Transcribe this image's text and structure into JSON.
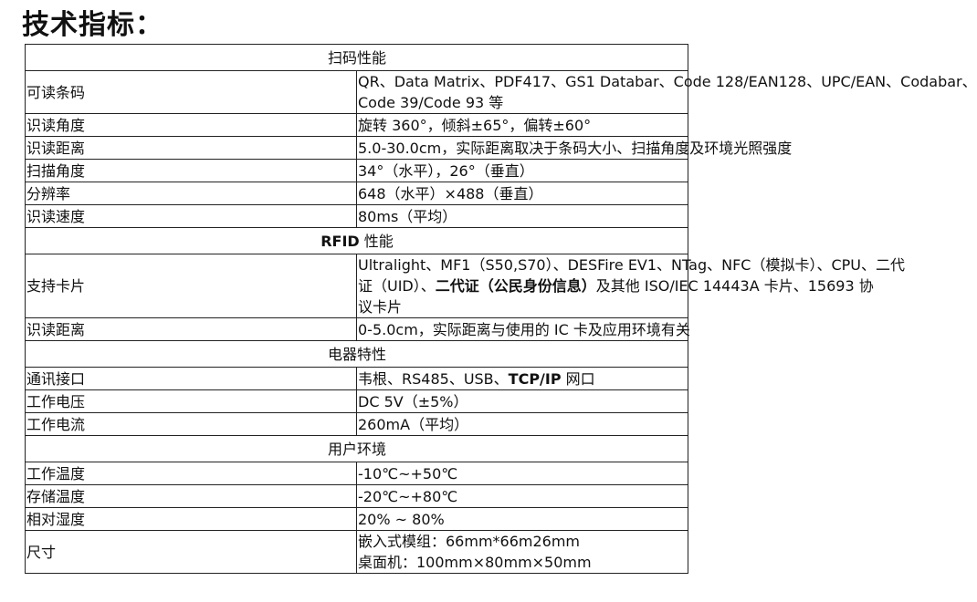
{
  "title": "技术指标：",
  "sections": [
    {
      "header": [
        {
          "t": "扫码性能",
          "b": false
        }
      ],
      "rows": [
        {
          "label": "可读条码",
          "lines": [
            [
              {
                "t": "QR",
                "b": false
              },
              {
                "t": "、Data Matrix、PDF417、GS1 Databar、Code 128/EAN128、UPC/EAN、Codabar、",
                "b": false
              }
            ],
            [
              {
                "t": "Code 39/Code 93 等",
                "b": false
              }
            ]
          ]
        },
        {
          "label": "识读角度",
          "lines": [
            [
              {
                "t": "旋转 360°，倾斜±65°，偏转±60°",
                "b": false
              }
            ]
          ]
        },
        {
          "label": "识读距离",
          "lines": [
            [
              {
                "t": "5.0-30.0cm，实际距离取决于条码大小、扫描角度及环境光照强度",
                "b": false
              }
            ]
          ]
        },
        {
          "label": "扫描角度",
          "lines": [
            [
              {
                "t": "34°（水平），26°（垂直）",
                "b": false
              }
            ]
          ]
        },
        {
          "label": "分辨率",
          "lines": [
            [
              {
                "t": "648（水平）×488（垂直）",
                "b": false
              }
            ]
          ]
        },
        {
          "label": "识读速度",
          "lines": [
            [
              {
                "t": "80ms（平均）",
                "b": false
              }
            ]
          ]
        }
      ]
    },
    {
      "header": [
        {
          "t": "RFID",
          "b": true
        },
        {
          "t": " 性能",
          "b": false
        }
      ],
      "rows": [
        {
          "label": "支持卡片",
          "lines": [
            [
              {
                "t": "Ultralight",
                "b": false
              },
              {
                "t": "、MF1（S50,S70）、DESFire EV1、NTag、NFC（模拟卡）、CPU、二代",
                "b": false
              }
            ],
            [
              {
                "t": "证（UID）、",
                "b": false
              },
              {
                "t": "二代证（公民身份信息）",
                "b": true
              },
              {
                "t": "及其他 ISO/IEC 14443A 卡片、15693 协",
                "b": false
              }
            ],
            [
              {
                "t": "议卡片",
                "b": false
              }
            ]
          ]
        },
        {
          "label": "识读距离",
          "lines": [
            [
              {
                "t": "0-5.0cm，实际距离与使用的 IC 卡及应用环境有关",
                "b": false
              }
            ]
          ]
        }
      ]
    },
    {
      "header": [
        {
          "t": "电器特性",
          "b": false
        }
      ],
      "rows": [
        {
          "label": "通讯接口",
          "lines": [
            [
              {
                "t": "韦根、RS485、USB、",
                "b": false
              },
              {
                "t": "TCP/IP",
                "b": true
              },
              {
                "t": " 网口",
                "b": false
              }
            ]
          ]
        },
        {
          "label": "工作电压",
          "lines": [
            [
              {
                "t": "DC 5V（±5%）",
                "b": false
              }
            ]
          ]
        },
        {
          "label": "工作电流",
          "lines": [
            [
              {
                "t": "260mA（平均）",
                "b": false
              }
            ]
          ]
        }
      ]
    },
    {
      "header": [
        {
          "t": "用户环境",
          "b": false
        }
      ],
      "rows": [
        {
          "label": "工作温度",
          "lines": [
            [
              {
                "t": "-10℃~+50℃",
                "b": false
              }
            ]
          ]
        },
        {
          "label": "存储温度",
          "lines": [
            [
              {
                "t": "-20℃~+80℃",
                "b": false
              }
            ]
          ]
        },
        {
          "label": "相对湿度",
          "lines": [
            [
              {
                "t": "20% ~ 80%",
                "b": false
              }
            ]
          ]
        },
        {
          "label": "尺寸",
          "lines": [
            [
              {
                "t": "嵌入式模组：66mm*66m26mm",
                "b": false
              }
            ],
            [
              {
                "t": "桌面机：100mm×80mm×50mm",
                "b": false
              }
            ]
          ]
        }
      ]
    }
  ]
}
